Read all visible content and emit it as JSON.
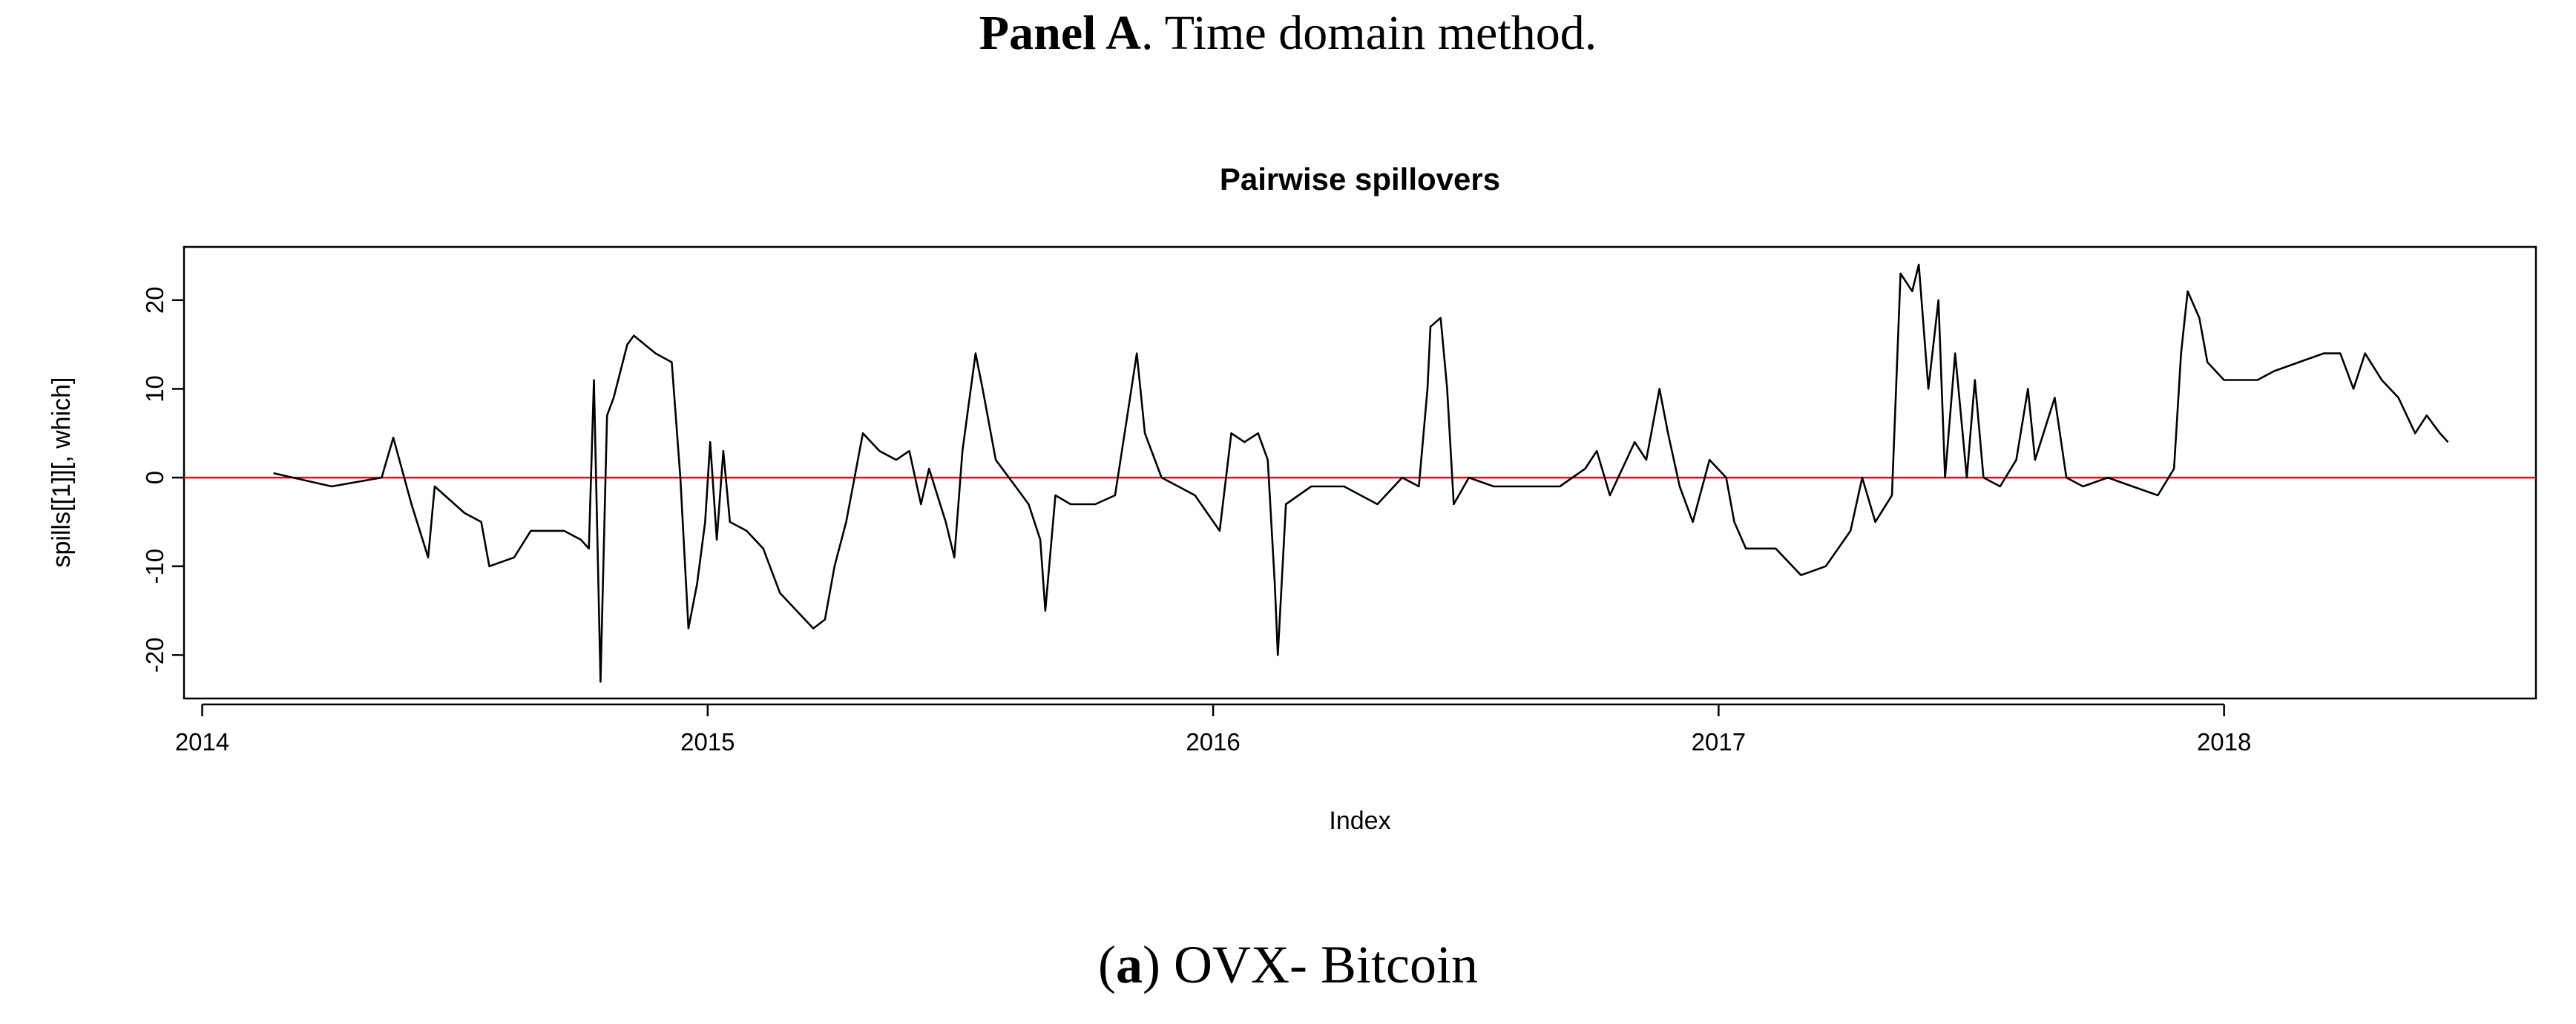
{
  "panel_title": {
    "bold": "Panel A",
    "rest": ". Time domain method."
  },
  "caption": {
    "open": "(",
    "bold": "a",
    "rest": ") OVX- Bitcoin"
  },
  "chart_data": {
    "type": "line",
    "title": "Pairwise spillovers",
    "x_label": "Index",
    "y_label": "spills[[1]][, which]",
    "xlim": [
      2013.964,
      2018.617
    ],
    "xticks": [
      2014,
      2015,
      2016,
      2017,
      2018
    ],
    "ylim": [
      -24.9,
      26
    ],
    "yticks": [
      -20,
      -10,
      0,
      10,
      20
    ],
    "hline": {
      "value": 0,
      "color": "#ff0000"
    },
    "series": [
      {
        "color": "#000000",
        "x": [
          2014.141,
          2014.256,
          2014.355,
          2014.378,
          2014.414,
          2014.447,
          2014.46,
          2014.519,
          2014.552,
          2014.568,
          2014.617,
          2014.65,
          2014.716,
          2014.749,
          2014.765,
          2014.775,
          2014.788,
          2014.801,
          2014.814,
          2014.841,
          2014.854,
          2014.897,
          2014.929,
          2014.946,
          2014.962,
          2014.979,
          2014.995,
          2015.005,
          2015.018,
          2015.031,
          2015.044,
          2015.077,
          2015.11,
          2015.143,
          2015.176,
          2015.209,
          2015.232,
          2015.251,
          2015.274,
          2015.307,
          2015.34,
          2015.373,
          2015.399,
          2015.422,
          2015.438,
          2015.471,
          2015.488,
          2015.504,
          2015.53,
          2015.544,
          2015.57,
          2015.609,
          2015.635,
          2015.658,
          2015.668,
          2015.688,
          2015.718,
          2015.767,
          2015.806,
          2015.833,
          2015.849,
          2015.865,
          2015.898,
          2015.931,
          2015.964,
          2016.013,
          2016.036,
          2016.062,
          2016.089,
          2016.108,
          2016.122,
          2016.128,
          2016.144,
          2016.194,
          2016.259,
          2016.325,
          2016.374,
          2016.407,
          2016.424,
          2016.43,
          2016.45,
          2016.463,
          2016.476,
          2016.506,
          2016.555,
          2016.621,
          2016.686,
          2016.736,
          2016.759,
          2016.785,
          2016.834,
          2016.857,
          2016.883,
          2016.9,
          2016.923,
          2016.949,
          2016.982,
          2017.015,
          2017.031,
          2017.054,
          2017.113,
          2017.163,
          2017.212,
          2017.261,
          2017.284,
          2017.31,
          2017.343,
          2017.36,
          2017.383,
          2017.396,
          2017.415,
          2017.435,
          2017.448,
          2017.468,
          2017.491,
          2017.507,
          2017.524,
          2017.557,
          2017.589,
          2017.612,
          2017.626,
          2017.665,
          2017.688,
          2017.721,
          2017.77,
          2017.819,
          2017.869,
          2017.901,
          2017.915,
          2017.928,
          2017.951,
          2017.967,
          2018.0,
          2018.033,
          2018.066,
          2018.099,
          2018.148,
          2018.197,
          2018.23,
          2018.256,
          2018.279,
          2018.312,
          2018.345,
          2018.378,
          2018.401,
          2018.427,
          2018.443
        ],
        "values": [
          0.5,
          -1,
          0,
          4.5,
          -3,
          -9,
          -1,
          -4,
          -5,
          -10,
          -9,
          -6,
          -6,
          -7,
          -8,
          11,
          -23,
          7,
          9,
          15,
          16,
          14,
          13,
          0,
          -17,
          -12,
          -5,
          4,
          -7,
          3,
          -5,
          -6,
          -8,
          -13,
          -15,
          -17,
          -16,
          -10,
          -5,
          5,
          3,
          2,
          3,
          -3,
          1,
          -5,
          -9,
          3,
          14,
          10,
          2,
          -1,
          -3,
          -7,
          -15,
          -2,
          -3,
          -3,
          -2,
          8,
          14,
          5,
          0,
          -1,
          -2,
          -6,
          5,
          4,
          5,
          2,
          -12,
          -20,
          -3,
          -1,
          -1,
          -3,
          0,
          -1,
          10,
          17,
          18,
          10,
          -3,
          0,
          -1,
          -1,
          -1,
          1,
          3,
          -2,
          4,
          2,
          10,
          5,
          -1,
          -5,
          2,
          0,
          -5,
          -8,
          -8,
          -11,
          -10,
          -6,
          0,
          -5,
          -2,
          23,
          21,
          24,
          10,
          20,
          0,
          14,
          0,
          11,
          0,
          -1,
          2,
          10,
          2,
          9,
          0,
          -1,
          0,
          -1,
          -2,
          1,
          14,
          21,
          18,
          13,
          11,
          11,
          11,
          12,
          13,
          14,
          14,
          10,
          14,
          11,
          9,
          5,
          7,
          5,
          4
        ]
      }
    ]
  }
}
